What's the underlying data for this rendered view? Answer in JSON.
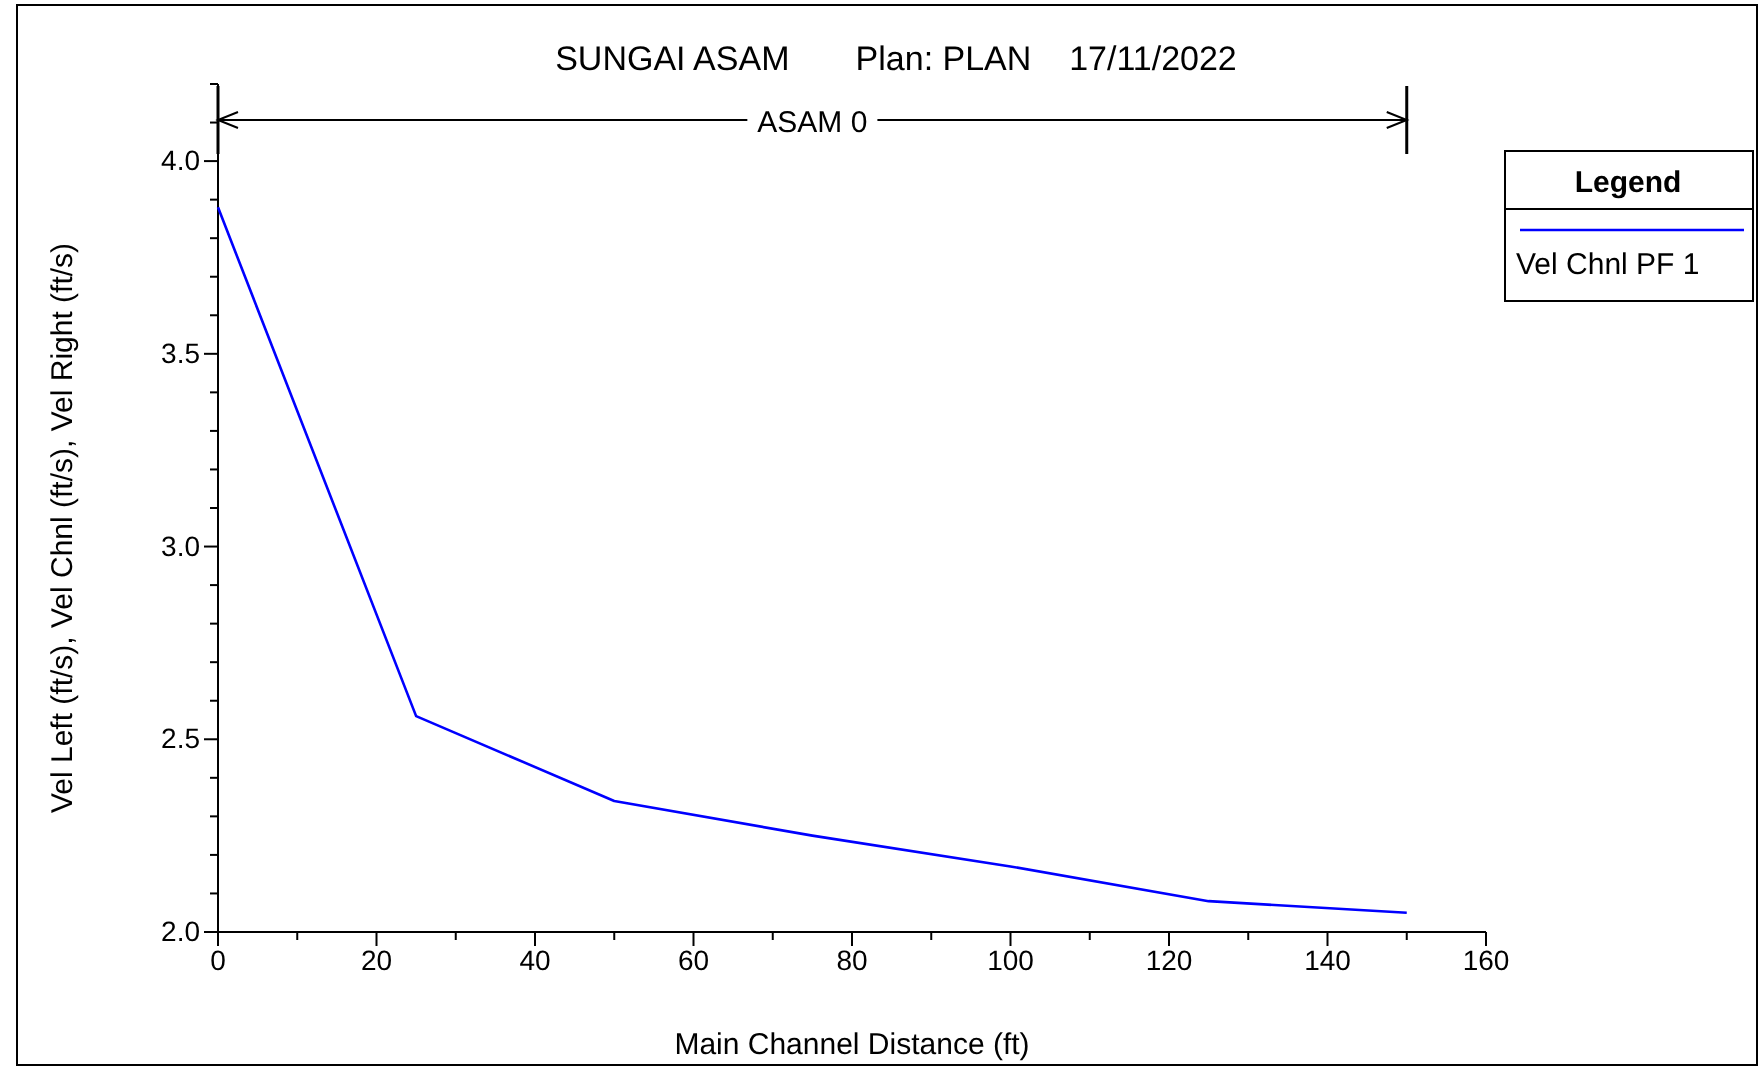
{
  "chart_data": {
    "type": "line",
    "title": "SUNGAI ASAM       Plan: PLAN    17/11/2022",
    "xlabel": "Main Channel Distance (ft)",
    "ylabel": "Vel Left (ft/s), Vel Chnl (ft/s), Vel Right (ft/s)",
    "legend_title": "Legend",
    "legend": "top right",
    "marker": "none",
    "line_style": "solid",
    "annotations": [
      "ASAM 0"
    ],
    "xlim": [
      0,
      160
    ],
    "xticks": [
      0,
      {
        "value": 10,
        "label": null
      },
      20,
      {
        "value": 30,
        "label": null
      },
      40,
      {
        "value": 50,
        "label": null
      },
      60,
      {
        "value": 70,
        "label": null
      },
      80,
      {
        "value": 90,
        "label": null
      },
      100,
      {
        "value": 110,
        "label": null
      },
      120,
      {
        "value": 130,
        "label": null
      },
      140,
      {
        "value": 150,
        "label": null
      },
      160
    ],
    "ylim": [
      2.0,
      4.2
    ],
    "yticks": [
      {
        "value": 2.0,
        "label": "2.0"
      },
      {
        "value": 2.1,
        "label": null
      },
      {
        "value": 2.2,
        "label": null
      },
      {
        "value": 2.3,
        "label": null
      },
      {
        "value": 2.4,
        "label": null
      },
      {
        "value": 2.5,
        "label": "2.5"
      },
      {
        "value": 2.6,
        "label": null
      },
      {
        "value": 2.7,
        "label": null
      },
      {
        "value": 2.8,
        "label": null
      },
      {
        "value": 2.9,
        "label": null
      },
      {
        "value": 3.0,
        "label": "3.0"
      },
      {
        "value": 3.1,
        "label": null
      },
      {
        "value": 3.2,
        "label": null
      },
      {
        "value": 3.3,
        "label": null
      },
      {
        "value": 3.4,
        "label": null
      },
      {
        "value": 3.5,
        "label": "3.5"
      },
      {
        "value": 3.6,
        "label": null
      },
      {
        "value": 3.7,
        "label": null
      },
      {
        "value": 3.8,
        "label": null
      },
      {
        "value": 3.9,
        "label": null
      },
      {
        "value": 4.0,
        "label": "4.0"
      },
      {
        "value": 4.1,
        "label": null
      },
      {
        "value": 4.2,
        "label": null
      }
    ],
    "series": [
      {
        "name": "Vel Chnl PF 1",
        "color": "#0000ff",
        "x": [
          0,
          25,
          50,
          75,
          100,
          125,
          150
        ],
        "values": [
          3.88,
          2.56,
          2.34,
          2.25,
          2.17,
          2.08,
          2.05
        ]
      }
    ]
  }
}
